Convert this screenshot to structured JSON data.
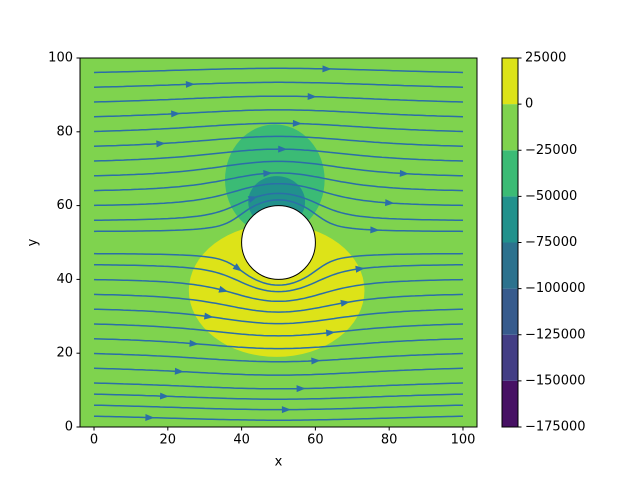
{
  "chart_data": {
    "type": "contour",
    "xlabel": "x",
    "ylabel": "y",
    "xlim": [
      -3.8,
      103.8
    ],
    "ylim": [
      0,
      100
    ],
    "xticks": [
      0,
      20,
      40,
      60,
      80,
      100
    ],
    "yticks": [
      0,
      20,
      40,
      60,
      80,
      100
    ],
    "levels": [
      {
        "value": -175000,
        "label": "−175000"
      },
      {
        "value": -150000,
        "label": "−150000"
      },
      {
        "value": -125000,
        "label": "−125000"
      },
      {
        "value": -100000,
        "label": "−100000"
      },
      {
        "value": -75000,
        "label": "−75000"
      },
      {
        "value": -50000,
        "label": "−50000"
      },
      {
        "value": -25000,
        "label": "−25000"
      },
      0,
      25000
    ],
    "colors": [
      "#471164",
      "#433e85",
      "#375b8d",
      "#2c728e",
      "#21918c",
      "#3bbb75",
      "#7fd34e",
      "#dde318"
    ],
    "background_band": 6,
    "regions": [
      {
        "band": 7,
        "cx": 49.5,
        "cy": 37,
        "rx": 23.8,
        "ry": 18
      },
      {
        "band": 5,
        "cx": 49,
        "cy": 67,
        "rx": 13.5,
        "ry": 15
      },
      {
        "band": 4,
        "cx": 49.5,
        "cy": 61,
        "rx": 7.7,
        "ry": 7
      }
    ],
    "obstacle": {
      "cx": 50,
      "cy": 50,
      "r": 10
    },
    "streamlines": {
      "color": "#2b6ea8",
      "start_y": [
        3,
        6,
        9,
        12,
        16,
        20,
        24,
        28,
        32,
        36,
        40,
        44,
        47,
        53,
        56,
        60,
        64,
        68,
        72,
        76,
        80,
        84,
        88,
        92,
        96
      ]
    }
  }
}
